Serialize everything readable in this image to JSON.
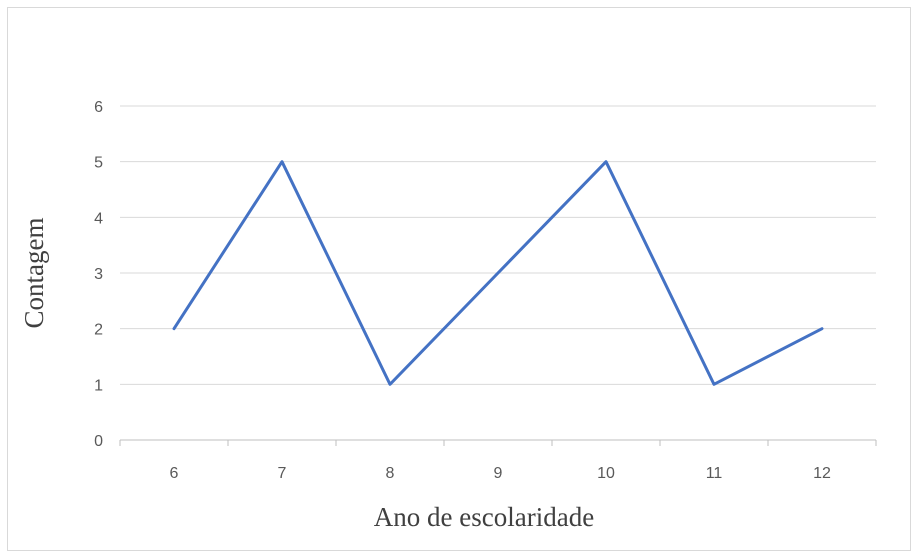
{
  "chart_data": {
    "type": "line",
    "x": [
      6,
      7,
      8,
      9,
      10,
      11,
      12
    ],
    "categories": [
      "6",
      "7",
      "8",
      "9",
      "10",
      "11",
      "12"
    ],
    "series": [
      {
        "values": [
          2,
          5,
          1,
          3,
          5,
          1,
          2
        ],
        "color": "#4472c4"
      }
    ],
    "title": "",
    "xlabel": "Ano de escolaridade",
    "ylabel": "Contagem",
    "ylim": [
      0,
      6
    ],
    "yticks": [
      "0",
      "1",
      "2",
      "3",
      "4",
      "5",
      "6"
    ],
    "grid": true,
    "legend": "none",
    "colors": {
      "line": "#4472c4",
      "grid": "#d9d9d9",
      "axis": "#bfbfbf",
      "text": "#595959"
    }
  }
}
